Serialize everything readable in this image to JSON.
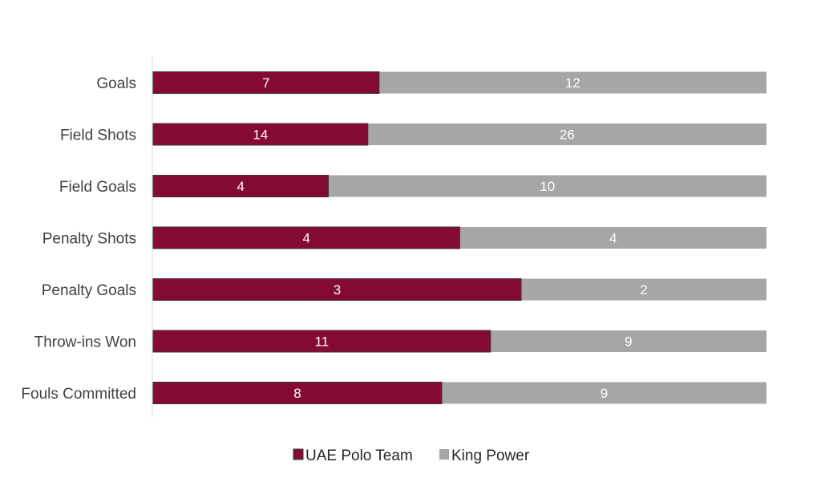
{
  "chart_data": {
    "type": "bar",
    "orientation": "horizontal",
    "stacking": "percent",
    "categories": [
      "Goals",
      "Field Shots",
      "Field Goals",
      "Penalty Shots",
      "Penalty Goals",
      "Throw-ins Won",
      "Fouls Committed"
    ],
    "series": [
      {
        "name": "UAE Polo Team",
        "values": [
          7,
          14,
          4,
          4,
          3,
          11,
          8
        ],
        "color": "#840a32"
      },
      {
        "name": "King Power",
        "values": [
          12,
          26,
          10,
          4,
          2,
          9,
          9
        ],
        "color": "#a6a6a6"
      }
    ],
    "title": "",
    "xlabel": "",
    "ylabel": "",
    "grid": false,
    "legend_position": "bottom",
    "data_labels": true
  }
}
